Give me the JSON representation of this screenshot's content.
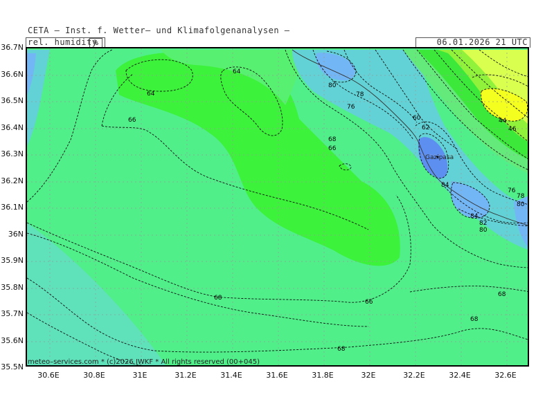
{
  "header": {
    "title": "CETA – Inst. f. Wetter– und Klimafolgenanalysen –",
    "parameter": "rel. humidity",
    "unit": "%",
    "valid_time": "06.01.2026 21 UTC"
  },
  "axes": {
    "lat_labels": [
      "36.7N",
      "36.6N",
      "36.5N",
      "36.4N",
      "36.3N",
      "36.2N",
      "36.1N",
      "36N",
      "35.9N",
      "35.8N",
      "35.7N",
      "35.6N",
      "35.5N"
    ],
    "lon_labels": [
      "30.6E",
      "30.8E",
      "31E",
      "31.2E",
      "31.4E",
      "31.6E",
      "31.8E",
      "32E",
      "32.2E",
      "32.4E",
      "32.6E"
    ]
  },
  "map": {
    "place_name": "Gazipasa",
    "contour_labels": [
      "64",
      "64",
      "66",
      "68",
      "66",
      "80",
      "78",
      "76",
      "60",
      "62",
      "84",
      "44",
      "46",
      "76",
      "78",
      "80",
      "84",
      "82",
      "80",
      "68",
      "66",
      "68",
      "68",
      "68"
    ]
  },
  "credit": "meteo–services.com * (c)2026 IWKF * All rights reserved (00+045)",
  "colors": {
    "rh_60": "#58f070",
    "rh_64": "#3cf23a",
    "rh_68": "#50ef8a",
    "rh_72": "#5fe1b9",
    "rh_76": "#62d2d6",
    "rh_80": "#73b6f5",
    "rh_84": "#5c8ff0",
    "dry": "#d9ff4f",
    "very_dry": "#f4ff20"
  }
}
